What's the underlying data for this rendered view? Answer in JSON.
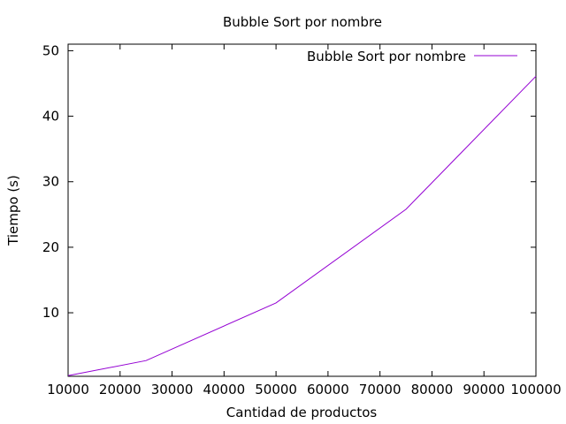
{
  "chart_data": {
    "type": "line",
    "title": "Bubble Sort por nombre",
    "xlabel": "Cantidad de productos",
    "ylabel": "Tiempo (s)",
    "xlim": [
      10000,
      100000
    ],
    "ylim": [
      0.3,
      51
    ],
    "x_ticks": [
      10000,
      20000,
      30000,
      40000,
      50000,
      60000,
      70000,
      80000,
      90000,
      100000
    ],
    "y_ticks": [
      10,
      20,
      30,
      40,
      50
    ],
    "grid": false,
    "legend_position": "top-right",
    "series": [
      {
        "name": "Bubble Sort por nombre",
        "color": "#9400d3",
        "x": [
          10000,
          25000,
          50000,
          75000,
          100000
        ],
        "y": [
          0.4,
          2.7,
          11.5,
          25.8,
          46.1
        ]
      }
    ]
  }
}
